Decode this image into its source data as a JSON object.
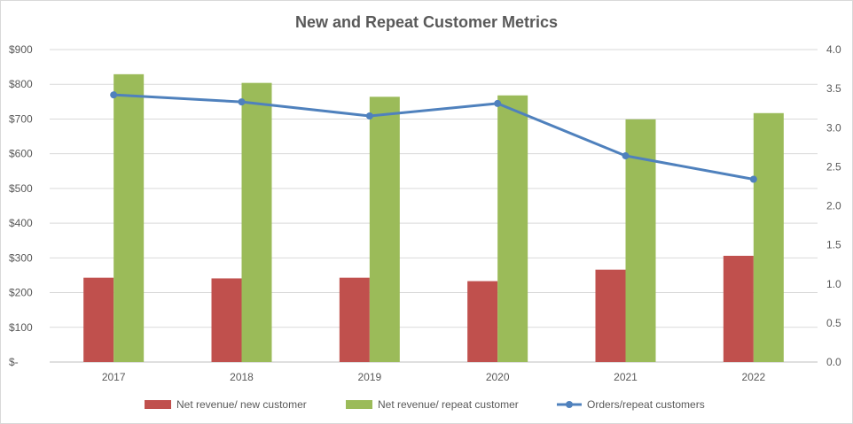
{
  "chart_data": {
    "type": "bar",
    "title": "New and Repeat Customer Metrics",
    "categories": [
      "2017",
      "2018",
      "2019",
      "2020",
      "2021",
      "2022"
    ],
    "series": [
      {
        "name": "Net revenue/ new customer",
        "type": "bar",
        "axis": "left",
        "color": "#c0504d",
        "values": [
          243,
          241,
          243,
          233,
          266,
          306
        ]
      },
      {
        "name": "Net revenue/ repeat customer",
        "type": "bar",
        "axis": "left",
        "color": "#9bbb59",
        "values": [
          829,
          804,
          764,
          768,
          699,
          717
        ]
      },
      {
        "name": "Orders/repeat customers",
        "type": "line",
        "axis": "right",
        "color": "#4f81bd",
        "values": [
          3.42,
          3.33,
          3.15,
          3.31,
          2.64,
          2.34
        ]
      }
    ],
    "y_left": {
      "ylim": [
        0,
        900
      ],
      "ticks": [
        0,
        100,
        200,
        300,
        400,
        500,
        600,
        700,
        800,
        900
      ],
      "tick_labels": [
        "$-",
        "$100",
        "$200",
        "$300",
        "$400",
        "$500",
        "$600",
        "$700",
        "$800",
        "$900"
      ]
    },
    "y_right": {
      "ylim": [
        0,
        4
      ],
      "ticks": [
        0,
        0.5,
        1,
        1.5,
        2,
        2.5,
        3,
        3.5,
        4
      ],
      "tick_labels": [
        "0.0",
        "0.5",
        "1.0",
        "1.5",
        "2.0",
        "2.5",
        "3.0",
        "3.5",
        "4.0"
      ]
    },
    "grid": true,
    "legend": "bottom"
  }
}
